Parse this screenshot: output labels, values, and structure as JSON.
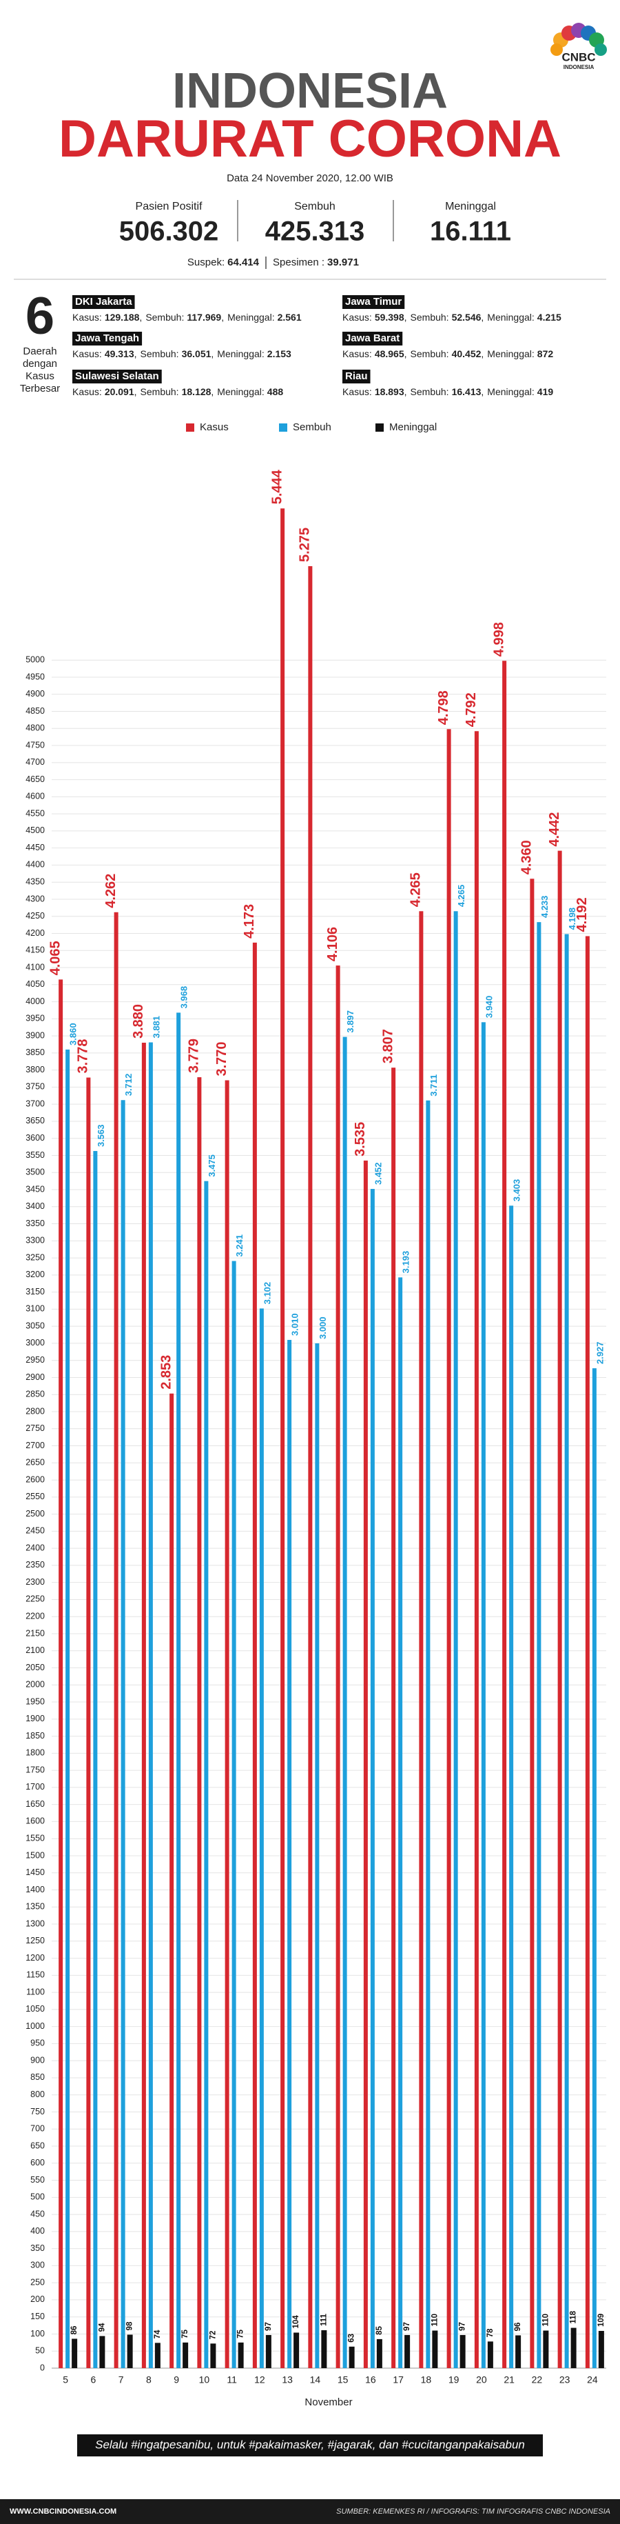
{
  "header": {
    "logo": {
      "brand": "CNBC",
      "sub": "INDONESIA"
    },
    "title_line1": "INDONESIA",
    "title_line2": "DARURAT CORONA",
    "date": "Data 24 November 2020, 12.00 WIB",
    "stats": [
      {
        "label": "Pasien Positif",
        "value": "506.302"
      },
      {
        "label": "Sembuh",
        "value": "425.313"
      },
      {
        "label": "Meninggal",
        "value": "16.111"
      }
    ],
    "suspek": {
      "label": "Suspek:",
      "value": "64.414"
    },
    "spesimen": {
      "label": "Spesimen :",
      "value": "39.971"
    },
    "regions_count": "6",
    "regions_caption": [
      "Daerah",
      "dengan",
      "Kasus",
      "Terbesar"
    ],
    "field_labels": {
      "kasus": "Kasus:",
      "sembuh": "Sembuh:",
      "meninggal": "Meninggal:"
    },
    "separator": ",",
    "regions": [
      {
        "name": "DKI Jakarta",
        "kasus": "129.188",
        "sembuh": "117.969",
        "meninggal": "2.561"
      },
      {
        "name": "Jawa Timur",
        "kasus": "59.398",
        "sembuh": "52.546",
        "meninggal": "4.215"
      },
      {
        "name": "Jawa Tengah",
        "kasus": "49.313",
        "sembuh": "36.051",
        "meninggal": "2.153"
      },
      {
        "name": "Jawa Barat",
        "kasus": "48.965",
        "sembuh": "40.452",
        "meninggal": "872"
      },
      {
        "name": "Sulawesi Selatan",
        "kasus": "20.091",
        "sembuh": "18.128",
        "meninggal": "488"
      },
      {
        "name": "Riau",
        "kasus": "18.893",
        "sembuh": "16.413",
        "meninggal": "419"
      }
    ]
  },
  "chart_data": {
    "type": "bar",
    "x_label": "November",
    "categories": [
      "5",
      "6",
      "7",
      "8",
      "9",
      "10",
      "11",
      "12",
      "13",
      "14",
      "15",
      "16",
      "17",
      "18",
      "19",
      "20",
      "21",
      "22",
      "23",
      "24"
    ],
    "series": [
      {
        "name": "Kasus",
        "color": "#d7282f",
        "values": [
          4065,
          3778,
          4262,
          3880,
          2853,
          3779,
          3770,
          4173,
          5444,
          5275,
          4106,
          3535,
          3807,
          4265,
          4798,
          4792,
          4998,
          4360,
          4442,
          4192
        ],
        "value_labels": [
          "4.065",
          "3.778",
          "4.262",
          "3.880",
          "2.853",
          "3.779",
          "3.770",
          "4.173",
          "5.444",
          "5.275",
          "4.106",
          "3.535",
          "3.807",
          "4.265",
          "4.798",
          "4.792",
          "4.998",
          "4.360",
          "4.442",
          "4.192"
        ]
      },
      {
        "name": "Sembuh",
        "color": "#1ea0dc",
        "values": [
          3860,
          3563,
          3712,
          3881,
          3968,
          3475,
          3241,
          3102,
          3010,
          3000,
          3897,
          3452,
          3193,
          3711,
          4265,
          3940,
          3403,
          4233,
          4198,
          2927
        ],
        "value_labels": [
          "3.860",
          "3.563",
          "3.712",
          "3.881",
          "3.968",
          "3.475",
          "3.241",
          "3.102",
          "3.010",
          "3.000",
          "3.897",
          "3.452",
          "3.193",
          "3.711",
          "4.265",
          "3.940",
          "3.403",
          "4.233",
          "4.198",
          "2.927"
        ]
      },
      {
        "name": "Meninggal",
        "color": "#111111",
        "values": [
          86,
          94,
          98,
          74,
          75,
          72,
          75,
          97,
          104,
          111,
          63,
          85,
          97,
          110,
          97,
          78,
          96,
          110,
          118,
          109
        ]
      }
    ],
    "ylim": [
      0,
      5600
    ],
    "yticks": [
      0,
      50,
      100,
      150,
      200,
      250,
      300,
      350,
      400,
      450,
      500,
      550,
      600,
      650,
      700,
      750,
      800,
      850,
      900,
      950,
      1000,
      1050,
      1100,
      1150,
      1200,
      1250,
      1300,
      1350,
      1400,
      1450,
      1500,
      1550,
      1600,
      1650,
      1700,
      1750,
      1800,
      1850,
      1900,
      1950,
      2000,
      2050,
      2100,
      2150,
      2200,
      2250,
      2300,
      2350,
      2400,
      2450,
      2500,
      2550,
      2600,
      2650,
      2700,
      2750,
      2800,
      2850,
      2900,
      2950,
      3000,
      3050,
      3100,
      3150,
      3200,
      3250,
      3300,
      3350,
      3400,
      3450,
      3500,
      3550,
      3600,
      3650,
      3700,
      3750,
      3800,
      3850,
      3900,
      3950,
      4000,
      4050,
      4100,
      4150,
      4200,
      4250,
      4300,
      4350,
      4400,
      4450,
      4500,
      4550,
      4600,
      4650,
      4700,
      4750,
      4800,
      4850,
      4900,
      4950,
      5000
    ],
    "grid": true,
    "legend": "top"
  },
  "footer": {
    "message": "Selalu #ingatpesanibu, untuk #pakaimasker, #jagarak, dan #cucitanganpakaisabun",
    "site": "WWW.CNBCINDONESIA.COM",
    "source": "SUMBER: KEMENKES RI / INFOGRAFIS: TIM INFOGRAFIS CNBC INDONESIA"
  }
}
